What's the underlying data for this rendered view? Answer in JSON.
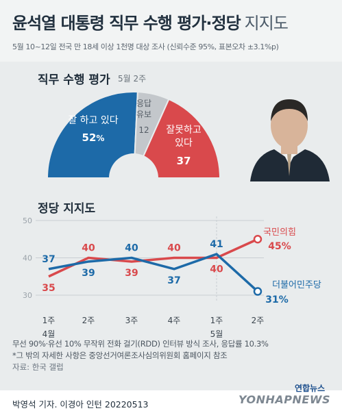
{
  "title": {
    "bold": "윤석열 대통령 직무 수행 평가·정당",
    "light": "지지도"
  },
  "subtitle": "5월 10~12일 전국 만 18세 이상 1천명 대상 조사 (신뢰수준 95%, 표본오차 ±3.1%p)",
  "approval": {
    "title": "직무 수행 평가",
    "date": "5월 2주",
    "chart_data": {
      "type": "pie",
      "categories": [
        "잘 하고 있다",
        "응답 유보",
        "잘못하고 있다"
      ],
      "values": [
        52,
        12,
        37
      ],
      "colors": [
        "#1d6aa8",
        "#c3c7cb",
        "#d9494c"
      ]
    },
    "labels": {
      "good_1": "잘 하고 있다",
      "good_val": "52",
      "good_unit": "%",
      "none_1": "응답",
      "none_2": "유보",
      "none_val": "12",
      "bad_1": "잘못하고",
      "bad_2": "있다",
      "bad_val": "37"
    }
  },
  "party": {
    "title": "정당 지지도",
    "chart_data": {
      "type": "line",
      "categories": [
        "1주\n4월",
        "2주",
        "3주",
        "4주",
        "1주\n5월",
        "2주"
      ],
      "series": [
        {
          "name": "국민의힘",
          "values": [
            35,
            40,
            39,
            40,
            40,
            45
          ],
          "color": "#d9494c"
        },
        {
          "name": "더불어민주당",
          "values": [
            37,
            39,
            40,
            37,
            41,
            31
          ],
          "color": "#1d6aa8"
        }
      ],
      "ylim": [
        30,
        50
      ],
      "yticks": [
        30,
        40,
        50
      ],
      "grid": true
    },
    "x_labels": [
      "1주",
      "2주",
      "3주",
      "4주",
      "1주",
      "2주"
    ],
    "month_labels": [
      "4월",
      "5월"
    ],
    "end_labels": {
      "ppp_name": "국민의힘",
      "ppp_val": "45%",
      "dp_name": "더불어민주당",
      "dp_val": "31%"
    }
  },
  "footer": {
    "line1": "무선 90%·유선 10% 무작위 전화 걸기(RDD) 인터뷰 방식 조사, 응답률 10.3%",
    "line2": "*그 밖의 자세한 사항은 중앙선거여론조사심의위원회 홈페이지 참조",
    "source": "자료: 한국 갤럽"
  },
  "credit": "박영석 기자. 이경아 인턴  20220513",
  "logo": {
    "kr": "연합뉴스",
    "en": "YONHAPNEWS"
  }
}
